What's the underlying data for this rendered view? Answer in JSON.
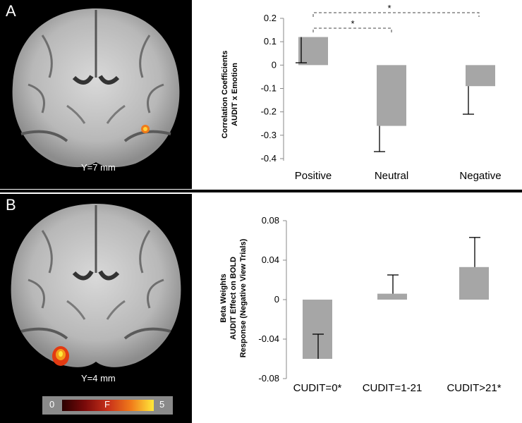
{
  "panels": [
    {
      "letter": "A",
      "slice_label": "Y=7 mm",
      "ylabel_lines": [
        "Correlation Coefficients",
        "AUDIT x Emotion"
      ],
      "significance": [
        "*",
        "*"
      ]
    },
    {
      "letter": "B",
      "slice_label": "Y=4 mm",
      "ylabel_lines": [
        "Beta Weights",
        "AUDIT Effect on BOLD",
        "Response (Negative View Trials)"
      ]
    }
  ],
  "colorbar": {
    "min": "0",
    "label": "F",
    "max": "5"
  },
  "colors": {
    "bar": "#a6a6a6",
    "activation": "#f07a1a"
  },
  "chart_data": [
    {
      "type": "bar",
      "categories": [
        "Positive",
        "Neutral",
        "Negative"
      ],
      "values": [
        0.12,
        -0.26,
        -0.09
      ],
      "error_ends": [
        0.01,
        -0.37,
        -0.21
      ],
      "ylim": [
        -0.4,
        0.2
      ],
      "yticks": [
        "-0.4",
        "-0.3",
        "-0.2",
        "-0.1",
        "0",
        "0.1",
        "0.2"
      ],
      "ytick_values": [
        -0.4,
        -0.3,
        -0.2,
        -0.1,
        0,
        0.1,
        0.2
      ],
      "ylabel": "Correlation Coefficients AUDIT x Emotion",
      "grid": false
    },
    {
      "type": "bar",
      "categories": [
        "CUDIT=0*",
        "CUDIT=1-21",
        "CUDIT>21*"
      ],
      "values": [
        -0.06,
        0.006,
        0.033
      ],
      "error_ends": [
        -0.035,
        0.025,
        0.063
      ],
      "ylim": [
        -0.08,
        0.08
      ],
      "yticks": [
        "-0.08",
        "-0.04",
        "0",
        "0.04",
        "0.08"
      ],
      "ytick_values": [
        -0.08,
        -0.04,
        0,
        0.04,
        0.08
      ],
      "ylabel": "Beta Weights AUDIT Effect on BOLD Response (Negative View Trials)",
      "grid": false
    }
  ]
}
